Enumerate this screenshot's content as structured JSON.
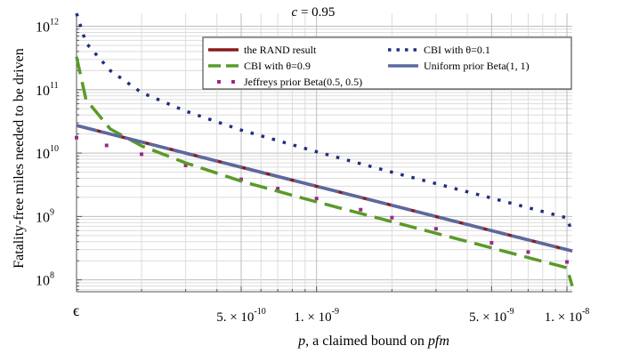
{
  "chart_data": {
    "type": "line",
    "title": "c = 0.95",
    "title_var": "c",
    "title_rest": " = 0.95",
    "ylabel": "Fatality-free miles needed to be driven",
    "xlabel_var": "p",
    "xlabel_mid": ", a claimed bound on ",
    "xlabel_var2": "pfm",
    "x_scale": "log",
    "y_scale": "log",
    "xlim": [
      1.1e-10,
      1.05e-08
    ],
    "ylim": [
      65000000.0,
      1600000000000.0
    ],
    "grid": true,
    "legend_position": "top-right",
    "x_ticks": [
      {
        "value": 1.1e-10,
        "label": "ϵ"
      },
      {
        "value": 5e-10,
        "label": "5. × 10",
        "exp": "-10"
      },
      {
        "value": 1e-09,
        "label": "1. × 10",
        "exp": "-9"
      },
      {
        "value": 5e-09,
        "label": "5. × 10",
        "exp": "-9"
      },
      {
        "value": 1e-08,
        "label": "1. × 10",
        "exp": "-8"
      }
    ],
    "y_ticks": [
      {
        "value": 100000000.0,
        "label": "10",
        "exp": "8"
      },
      {
        "value": 1000000000.0,
        "label": "10",
        "exp": "9"
      },
      {
        "value": 10000000000.0,
        "label": "10",
        "exp": "10"
      },
      {
        "value": 100000000000.0,
        "label": "10",
        "exp": "11"
      },
      {
        "value": 1000000000000.0,
        "label": "10",
        "exp": "12"
      }
    ],
    "series": [
      {
        "name": "the RAND result",
        "style": "solid",
        "color": "#8b1a1a",
        "x": [
          1.1e-10,
          2e-10,
          5e-10,
          1e-09,
          2e-09,
          5e-09,
          1e-08,
          1.05e-08
        ],
        "y": [
          27200000000.0,
          15000000000.0,
          5990000000.0,
          3000000000.0,
          1500000000.0,
          599000000.0,
          300000000.0,
          285000000.0
        ]
      },
      {
        "name": "CBI with θ=0.1",
        "style": "dotted",
        "color": "#1f2f80",
        "x": [
          1.1e-10,
          1.2e-10,
          1.5e-10,
          2e-10,
          3e-10,
          5e-10,
          1e-09,
          2e-09,
          5e-09,
          1e-08,
          1.05e-08
        ],
        "y": [
          1600000000000.0,
          550000000000.0,
          200000000000.0,
          90000000000.0,
          46000000000.0,
          23000000000.0,
          10500000000.0,
          5000000000.0,
          1950000000.0,
          950000000.0,
          550000000.0
        ]
      },
      {
        "name": "CBI with θ=0.9",
        "style": "dashed",
        "color": "#5a9a28",
        "x": [
          1.1e-10,
          1.2e-10,
          1.5e-10,
          2e-10,
          3e-10,
          5e-10,
          1e-09,
          2e-09,
          5e-09,
          1e-08,
          1.05e-08
        ],
        "y": [
          330000000000.0,
          70000000000.0,
          24000000000.0,
          13000000000.0,
          7000000000.0,
          3600000000.0,
          1700000000.0,
          830000000.0,
          320000000.0,
          155000000.0,
          80000000.0
        ]
      },
      {
        "name": "Uniform prior Beta(1, 1)",
        "style": "solid",
        "color": "#5a6aa0",
        "x": [
          1.1e-10,
          2e-10,
          5e-10,
          1e-09,
          2e-09,
          5e-09,
          1e-08,
          1.05e-08
        ],
        "y": [
          27200000000.0,
          15000000000.0,
          5990000000.0,
          3000000000.0,
          1500000000.0,
          599000000.0,
          300000000.0,
          285000000.0
        ]
      },
      {
        "name": "Jeffreys prior Beta(0.5, 0.5)",
        "style": "sparse-dot",
        "color": "#9b2a8a",
        "x": [
          1.1e-10,
          1.45e-10,
          2e-10,
          3e-10,
          5e-10,
          7e-10,
          1e-09,
          1.5e-09,
          2e-09,
          3e-09,
          5e-09,
          7e-09,
          1e-08
        ],
        "y": [
          17500000000.0,
          13200000000.0,
          9600000000.0,
          6400000000.0,
          3850000000.0,
          2750000000.0,
          1920000000.0,
          1280000000.0,
          960000000.0,
          640000000.0,
          385000000.0,
          275000000.0,
          192000000.0
        ]
      }
    ]
  }
}
